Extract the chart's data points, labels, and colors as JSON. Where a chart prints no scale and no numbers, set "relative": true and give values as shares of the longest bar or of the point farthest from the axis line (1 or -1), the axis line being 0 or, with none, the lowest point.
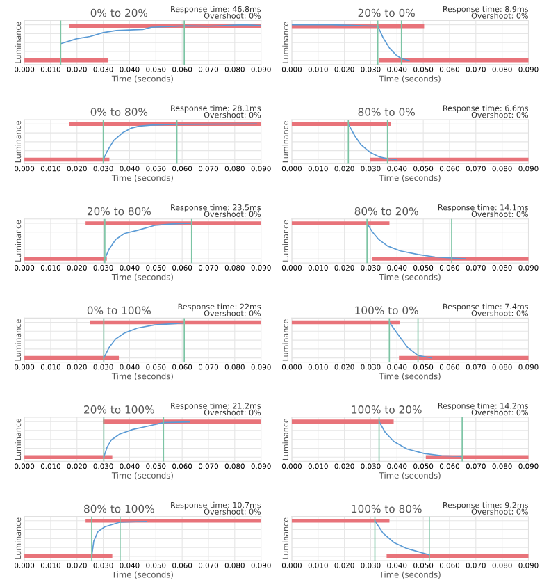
{
  "chart_data": [
    {
      "type": "line",
      "title": "0% to 20%",
      "xlabel": "Time (seconds)",
      "ylabel": "Luminance",
      "annotations": [
        "Response time: 46.8ms",
        "Overshoot: 0%"
      ],
      "relative": true,
      "grid": true,
      "tick_labels": "x",
      "xlim": [
        0,
        0.09
      ],
      "xticks": [
        {
          "value": 0,
          "label": "0.000"
        },
        {
          "value": 0.01,
          "label": "0.010"
        },
        {
          "value": 0.02,
          "label": "0.020"
        },
        {
          "value": 0.03,
          "label": "0.030"
        },
        {
          "value": 0.04,
          "label": "0.040"
        },
        {
          "value": 0.05,
          "label": "0.050"
        },
        {
          "value": 0.06,
          "label": "0.060"
        },
        {
          "value": 0.07,
          "label": "0.070"
        },
        {
          "value": 0.08,
          "label": "0.080"
        },
        {
          "value": 0.09,
          "label": "0.090"
        }
      ],
      "series": [
        {
          "color": "#e8737a",
          "x": [
            0,
            0.031
          ],
          "values": [
            0,
            0
          ]
        },
        {
          "color": "#e8737a",
          "x": [
            0.0178,
            0.09
          ],
          "values": [
            0.97,
            0.97
          ]
        },
        {
          "color": "#5b9bd5",
          "x": [
            0.0138,
            0.02,
            0.025,
            0.03,
            0.035,
            0.045,
            0.0483,
            0.0608,
            0.07,
            0.0833,
            0.09
          ],
          "values": [
            0.47,
            0.61,
            0.67,
            0.78,
            0.84,
            0.87,
            0.93,
            0.97,
            0.96,
            1.0,
            0.98
          ]
        }
      ],
      "ref_lines": [
        {
          "axis": "x",
          "value": 0.0138,
          "color": "#7cc4a4"
        },
        {
          "axis": "x",
          "value": 0.0608,
          "color": "#7cc4a4"
        }
      ]
    },
    {
      "type": "line",
      "title": "20% to 0%",
      "xlabel": "Time (seconds)",
      "ylabel": "Luminance",
      "annotations": [
        "Response time: 8.9ms",
        "Overshoot: 0%"
      ],
      "relative": true,
      "grid": true,
      "tick_labels": "x",
      "xlim": [
        0,
        0.09
      ],
      "xticks": [
        {
          "value": 0,
          "label": "0.000"
        },
        {
          "value": 0.01,
          "label": "0.010"
        },
        {
          "value": 0.02,
          "label": "0.020"
        },
        {
          "value": 0.03,
          "label": "0.030"
        },
        {
          "value": 0.04,
          "label": "0.040"
        },
        {
          "value": 0.05,
          "label": "0.050"
        },
        {
          "value": 0.06,
          "label": "0.060"
        },
        {
          "value": 0.07,
          "label": "0.070"
        },
        {
          "value": 0.08,
          "label": "0.080"
        },
        {
          "value": 0.09,
          "label": "0.090"
        }
      ],
      "series": [
        {
          "color": "#e8737a",
          "x": [
            0,
            0.0496
          ],
          "values": [
            0.96,
            0.96
          ]
        },
        {
          "color": "#e8737a",
          "x": [
            0.034,
            0.09
          ],
          "values": [
            0,
            0
          ]
        },
        {
          "color": "#5b9bd5",
          "x": [
            0,
            0.015,
            0.0327,
            0.0347,
            0.0372,
            0.0397,
            0.0417,
            0.0446
          ],
          "values": [
            1.0,
            1.0,
            0.96,
            0.64,
            0.34,
            0.15,
            0.05,
            0
          ]
        }
      ],
      "ref_lines": [
        {
          "axis": "x",
          "value": 0.0327,
          "color": "#7cc4a4"
        },
        {
          "axis": "x",
          "value": 0.0417,
          "color": "#7cc4a4"
        }
      ]
    },
    {
      "type": "line",
      "title": "0% to 80%",
      "xlabel": "Time (seconds)",
      "ylabel": "Luminance",
      "annotations": [
        "Response time: 28.1ms",
        "Overshoot: 0%"
      ],
      "relative": true,
      "grid": true,
      "tick_labels": "x",
      "xlim": [
        0,
        0.09
      ],
      "xticks": [
        {
          "value": 0,
          "label": "0.000"
        },
        {
          "value": 0.01,
          "label": "0.010"
        },
        {
          "value": 0.02,
          "label": "0.020"
        },
        {
          "value": 0.03,
          "label": "0.030"
        },
        {
          "value": 0.04,
          "label": "0.040"
        },
        {
          "value": 0.05,
          "label": "0.050"
        },
        {
          "value": 0.06,
          "label": "0.060"
        },
        {
          "value": 0.07,
          "label": "0.070"
        },
        {
          "value": 0.08,
          "label": "0.080"
        },
        {
          "value": 0.09,
          "label": "0.090"
        }
      ],
      "series": [
        {
          "color": "#e8737a",
          "x": [
            0,
            0.0316
          ],
          "values": [
            0,
            0
          ]
        },
        {
          "color": "#e8737a",
          "x": [
            0.0178,
            0.09
          ],
          "values": [
            1,
            1
          ]
        },
        {
          "color": "#5b9bd5",
          "x": [
            0.03,
            0.0316,
            0.034,
            0.0373,
            0.0405,
            0.0438,
            0.0486,
            0.058,
            0.0883
          ],
          "values": [
            0,
            0.25,
            0.54,
            0.75,
            0.88,
            0.94,
            0.97,
            0.99,
            1.0
          ]
        }
      ],
      "ref_lines": [
        {
          "axis": "x",
          "value": 0.03,
          "color": "#7cc4a4"
        },
        {
          "axis": "x",
          "value": 0.058,
          "color": "#7cc4a4"
        }
      ]
    },
    {
      "type": "line",
      "title": "80% to 0%",
      "xlabel": "Time (seconds)",
      "ylabel": "Luminance",
      "annotations": [
        "Response time: 6.6ms",
        "Overshoot: 0%"
      ],
      "relative": true,
      "grid": true,
      "tick_labels": "x",
      "xlim": [
        0,
        0.09
      ],
      "xticks": [
        {
          "value": 0,
          "label": "0.000"
        },
        {
          "value": 0.01,
          "label": "0.010"
        },
        {
          "value": 0.02,
          "label": "0.020"
        },
        {
          "value": 0.03,
          "label": "0.030"
        },
        {
          "value": 0.04,
          "label": "0.040"
        },
        {
          "value": 0.05,
          "label": "0.050"
        },
        {
          "value": 0.06,
          "label": "0.060"
        },
        {
          "value": 0.07,
          "label": "0.070"
        },
        {
          "value": 0.08,
          "label": "0.080"
        },
        {
          "value": 0.09,
          "label": "0.090"
        }
      ],
      "series": [
        {
          "color": "#e8737a",
          "x": [
            0,
            0.037
          ],
          "values": [
            1,
            1
          ]
        },
        {
          "color": "#e8737a",
          "x": [
            0.0306,
            0.09
          ],
          "values": [
            0,
            0
          ]
        },
        {
          "color": "#5b9bd5",
          "x": [
            0.0215,
            0.024,
            0.0264,
            0.0298,
            0.0331,
            0.0364,
            0.0397
          ],
          "values": [
            1,
            0.66,
            0.41,
            0.2,
            0.08,
            0.02,
            0
          ]
        }
      ],
      "ref_lines": [
        {
          "axis": "x",
          "value": 0.0215,
          "color": "#7cc4a4"
        },
        {
          "axis": "x",
          "value": 0.0364,
          "color": "#7cc4a4"
        }
      ]
    },
    {
      "type": "line",
      "title": "20% to 80%",
      "xlabel": "Time (seconds)",
      "ylabel": "Luminance",
      "annotations": [
        "Response time: 23.5ms",
        "Overshoot: 0%"
      ],
      "relative": true,
      "grid": true,
      "tick_labels": "x",
      "xlim": [
        0,
        0.09
      ],
      "xticks": [
        {
          "value": 0,
          "label": "0.000"
        },
        {
          "value": 0.01,
          "label": "0.010"
        },
        {
          "value": 0.02,
          "label": "0.020"
        },
        {
          "value": 0.03,
          "label": "0.030"
        },
        {
          "value": 0.04,
          "label": "0.040"
        },
        {
          "value": 0.05,
          "label": "0.050"
        },
        {
          "value": 0.06,
          "label": "0.060"
        },
        {
          "value": 0.07,
          "label": "0.070"
        },
        {
          "value": 0.08,
          "label": "0.080"
        },
        {
          "value": 0.09,
          "label": "0.090"
        }
      ],
      "series": [
        {
          "color": "#e8737a",
          "x": [
            0,
            0.0306
          ],
          "values": [
            0,
            0
          ]
        },
        {
          "color": "#e8737a",
          "x": [
            0.024,
            0.09
          ],
          "values": [
            1,
            1
          ]
        },
        {
          "color": "#5b9bd5",
          "x": [
            0.0306,
            0.0322,
            0.0347,
            0.038,
            0.043,
            0.0496,
            0.0562,
            0.0636
          ],
          "values": [
            0,
            0.27,
            0.54,
            0.71,
            0.8,
            0.94,
            0.98,
            1.0
          ]
        }
      ],
      "ref_lines": [
        {
          "axis": "x",
          "value": 0.0306,
          "color": "#7cc4a4"
        },
        {
          "axis": "x",
          "value": 0.0636,
          "color": "#7cc4a4"
        }
      ]
    },
    {
      "type": "line",
      "title": "80% to 20%",
      "xlabel": "Time (seconds)",
      "ylabel": "Luminance",
      "annotations": [
        "Response time: 14.1ms",
        "Overshoot: 0%"
      ],
      "relative": true,
      "grid": true,
      "tick_labels": "x",
      "xlim": [
        0,
        0.09
      ],
      "xticks": [
        {
          "value": 0,
          "label": "0.000"
        },
        {
          "value": 0.01,
          "label": "0.010"
        },
        {
          "value": 0.02,
          "label": "0.020"
        },
        {
          "value": 0.03,
          "label": "0.030"
        },
        {
          "value": 0.04,
          "label": "0.040"
        },
        {
          "value": 0.05,
          "label": "0.050"
        },
        {
          "value": 0.06,
          "label": "0.060"
        },
        {
          "value": 0.07,
          "label": "0.070"
        },
        {
          "value": 0.08,
          "label": "0.080"
        },
        {
          "value": 0.09,
          "label": "0.090"
        }
      ],
      "series": [
        {
          "color": "#e8737a",
          "x": [
            0,
            0.0364
          ],
          "values": [
            1,
            1
          ]
        },
        {
          "color": "#e8737a",
          "x": [
            0.0314,
            0.09
          ],
          "values": [
            0,
            0
          ]
        },
        {
          "color": "#5b9bd5",
          "x": [
            0.0286,
            0.0306,
            0.0331,
            0.0364,
            0.0413,
            0.048,
            0.0545,
            0.0608,
            0.0661
          ],
          "values": [
            1,
            0.76,
            0.54,
            0.36,
            0.22,
            0.12,
            0.05,
            0.02,
            0
          ]
        }
      ],
      "ref_lines": [
        {
          "axis": "x",
          "value": 0.0286,
          "color": "#7cc4a4"
        },
        {
          "axis": "x",
          "value": 0.0608,
          "color": "#7cc4a4"
        }
      ]
    },
    {
      "type": "line",
      "title": "0% to 100%",
      "xlabel": "Time (seconds)",
      "ylabel": "Luminance",
      "annotations": [
        "Response time: 22ms",
        "Overshoot: 0%"
      ],
      "relative": true,
      "grid": true,
      "tick_labels": "x",
      "xlim": [
        0,
        0.09
      ],
      "xticks": [
        {
          "value": 0,
          "label": "0.000"
        },
        {
          "value": 0.01,
          "label": "0.010"
        },
        {
          "value": 0.02,
          "label": "0.020"
        },
        {
          "value": 0.03,
          "label": "0.030"
        },
        {
          "value": 0.04,
          "label": "0.040"
        },
        {
          "value": 0.05,
          "label": "0.050"
        },
        {
          "value": 0.06,
          "label": "0.060"
        },
        {
          "value": 0.07,
          "label": "0.070"
        },
        {
          "value": 0.08,
          "label": "0.080"
        },
        {
          "value": 0.09,
          "label": "0.090"
        }
      ],
      "series": [
        {
          "color": "#e8737a",
          "x": [
            0,
            0.0352
          ],
          "values": [
            0,
            0
          ]
        },
        {
          "color": "#e8737a",
          "x": [
            0.0256,
            0.09
          ],
          "values": [
            1,
            1
          ]
        },
        {
          "color": "#5b9bd5",
          "x": [
            0.0302,
            0.0322,
            0.0347,
            0.038,
            0.043,
            0.0496,
            0.0608
          ],
          "values": [
            0,
            0.29,
            0.53,
            0.7,
            0.84,
            0.93,
            0.98
          ]
        }
      ],
      "ref_lines": [
        {
          "axis": "x",
          "value": 0.0302,
          "color": "#7cc4a4"
        },
        {
          "axis": "x",
          "value": 0.0608,
          "color": "#7cc4a4"
        }
      ]
    },
    {
      "type": "line",
      "title": "100% to 0%",
      "xlabel": "Time (seconds)",
      "ylabel": "Luminance",
      "annotations": [
        "Response time: 7.4ms",
        "Overshoot: 0%"
      ],
      "relative": true,
      "grid": true,
      "tick_labels": "x",
      "xlim": [
        0,
        0.09
      ],
      "xticks": [
        {
          "value": 0,
          "label": "0.000"
        },
        {
          "value": 0.01,
          "label": "0.010"
        },
        {
          "value": 0.02,
          "label": "0.020"
        },
        {
          "value": 0.03,
          "label": "0.030"
        },
        {
          "value": 0.04,
          "label": "0.040"
        },
        {
          "value": 0.05,
          "label": "0.050"
        },
        {
          "value": 0.06,
          "label": "0.060"
        },
        {
          "value": 0.07,
          "label": "0.070"
        },
        {
          "value": 0.08,
          "label": "0.080"
        },
        {
          "value": 0.09,
          "label": "0.090"
        }
      ],
      "series": [
        {
          "color": "#e8737a",
          "x": [
            0,
            0.0405
          ],
          "values": [
            1,
            1
          ]
        },
        {
          "color": "#e8737a",
          "x": [
            0.0415,
            0.09
          ],
          "values": [
            0,
            0
          ]
        },
        {
          "color": "#5b9bd5",
          "x": [
            0.0371,
            0.0405,
            0.044,
            0.048,
            0.053
          ],
          "values": [
            1,
            0.65,
            0.3,
            0.07,
            0
          ]
        }
      ],
      "ref_lines": [
        {
          "axis": "x",
          "value": 0.0371,
          "color": "#7cc4a4"
        },
        {
          "axis": "x",
          "value": 0.048,
          "color": "#7cc4a4"
        }
      ]
    },
    {
      "type": "line",
      "title": "20% to 100%",
      "xlabel": "Time (seconds)",
      "ylabel": "Luminance",
      "annotations": [
        "Response time: 21.2ms",
        "Overshoot: 0%"
      ],
      "relative": true,
      "grid": true,
      "tick_labels": "x",
      "xlim": [
        0,
        0.09
      ],
      "xticks": [
        {
          "value": 0,
          "label": "0.000"
        },
        {
          "value": 0.01,
          "label": "0.010"
        },
        {
          "value": 0.02,
          "label": "0.020"
        },
        {
          "value": 0.03,
          "label": "0.030"
        },
        {
          "value": 0.04,
          "label": "0.040"
        },
        {
          "value": 0.05,
          "label": "0.050"
        },
        {
          "value": 0.06,
          "label": "0.060"
        },
        {
          "value": 0.07,
          "label": "0.070"
        },
        {
          "value": 0.08,
          "label": "0.080"
        },
        {
          "value": 0.09,
          "label": "0.090"
        }
      ],
      "series": [
        {
          "color": "#e8737a",
          "x": [
            0,
            0.0327
          ],
          "values": [
            0,
            0
          ]
        },
        {
          "color": "#e8737a",
          "x": [
            0.0306,
            0.09
          ],
          "values": [
            1,
            1
          ]
        },
        {
          "color": "#5b9bd5",
          "x": [
            0.0302,
            0.0314,
            0.033,
            0.0363,
            0.0413,
            0.0463,
            0.0529,
            0.0628
          ],
          "values": [
            0,
            0.27,
            0.48,
            0.65,
            0.78,
            0.86,
            0.97,
            0.99
          ]
        }
      ],
      "ref_lines": [
        {
          "axis": "x",
          "value": 0.0302,
          "color": "#7cc4a4"
        },
        {
          "axis": "x",
          "value": 0.0529,
          "color": "#7cc4a4"
        }
      ]
    },
    {
      "type": "line",
      "title": "100% to 20%",
      "xlabel": "Time (seconds)",
      "ylabel": "Luminance",
      "annotations": [
        "Response time: 14.2ms",
        "Overshoot: 0%"
      ],
      "relative": true,
      "grid": true,
      "tick_labels": "x",
      "xlim": [
        0,
        0.09
      ],
      "xticks": [
        {
          "value": 0,
          "label": "0.000"
        },
        {
          "value": 0.01,
          "label": "0.010"
        },
        {
          "value": 0.02,
          "label": "0.020"
        },
        {
          "value": 0.03,
          "label": "0.030"
        },
        {
          "value": 0.04,
          "label": "0.040"
        },
        {
          "value": 0.05,
          "label": "0.050"
        },
        {
          "value": 0.06,
          "label": "0.060"
        },
        {
          "value": 0.07,
          "label": "0.070"
        },
        {
          "value": 0.08,
          "label": "0.080"
        },
        {
          "value": 0.09,
          "label": "0.090"
        }
      ],
      "series": [
        {
          "color": "#e8737a",
          "x": [
            0,
            0.038
          ],
          "values": [
            1,
            1
          ]
        },
        {
          "color": "#e8737a",
          "x": [
            0.0517,
            0.09
          ],
          "values": [
            0,
            0
          ]
        },
        {
          "color": "#5b9bd5",
          "x": [
            0.0332,
            0.0355,
            0.0388,
            0.0438,
            0.0504,
            0.057,
            0.0648
          ],
          "values": [
            1,
            0.7,
            0.44,
            0.23,
            0.1,
            0.04,
            0.02
          ]
        }
      ],
      "ref_lines": [
        {
          "axis": "x",
          "value": 0.0332,
          "color": "#7cc4a4"
        },
        {
          "axis": "x",
          "value": 0.0648,
          "color": "#7cc4a4"
        }
      ]
    },
    {
      "type": "line",
      "title": "80% to 100%",
      "xlabel": "Time (seconds)",
      "ylabel": "Luminance",
      "annotations": [
        "Response time: 10.7ms",
        "Overshoot: 0%"
      ],
      "relative": true,
      "grid": true,
      "tick_labels": "x",
      "xlim": [
        0,
        0.09
      ],
      "xticks": [
        {
          "value": 0,
          "label": "0.000"
        },
        {
          "value": 0.01,
          "label": "0.010"
        },
        {
          "value": 0.02,
          "label": "0.020"
        },
        {
          "value": 0.03,
          "label": "0.030"
        },
        {
          "value": 0.04,
          "label": "0.040"
        },
        {
          "value": 0.05,
          "label": "0.050"
        },
        {
          "value": 0.06,
          "label": "0.060"
        },
        {
          "value": 0.07,
          "label": "0.070"
        },
        {
          "value": 0.08,
          "label": "0.080"
        },
        {
          "value": 0.09,
          "label": "0.090"
        }
      ],
      "series": [
        {
          "color": "#e8737a",
          "x": [
            0,
            0.0327
          ],
          "values": [
            0,
            0
          ]
        },
        {
          "color": "#e8737a",
          "x": [
            0.024,
            0.09
          ],
          "values": [
            1,
            1
          ]
        },
        {
          "color": "#5b9bd5",
          "x": [
            0.0256,
            0.0264,
            0.028,
            0.0306,
            0.0364,
            0.0463
          ],
          "values": [
            0,
            0.43,
            0.7,
            0.83,
            0.96,
            0.98
          ]
        }
      ],
      "ref_lines": [
        {
          "axis": "x",
          "value": 0.0256,
          "color": "#7cc4a4"
        },
        {
          "axis": "x",
          "value": 0.0364,
          "color": "#7cc4a4"
        }
      ]
    },
    {
      "type": "line",
      "title": "100% to 80%",
      "xlabel": "Time (seconds)",
      "ylabel": "Luminance",
      "annotations": [
        "Response time: 9.2ms",
        "Overshoot: 0%"
      ],
      "relative": true,
      "grid": true,
      "tick_labels": "x",
      "xlim": [
        0,
        0.09
      ],
      "xticks": [
        {
          "value": 0,
          "label": "0.000"
        },
        {
          "value": 0.01,
          "label": "0.010"
        },
        {
          "value": 0.02,
          "label": "0.020"
        },
        {
          "value": 0.03,
          "label": "0.030"
        },
        {
          "value": 0.04,
          "label": "0.040"
        },
        {
          "value": 0.05,
          "label": "0.050"
        },
        {
          "value": 0.06,
          "label": "0.060"
        },
        {
          "value": 0.07,
          "label": "0.070"
        },
        {
          "value": 0.08,
          "label": "0.080"
        },
        {
          "value": 0.09,
          "label": "0.090"
        }
      ],
      "series": [
        {
          "color": "#e8737a",
          "x": [
            0,
            0.0364
          ],
          "values": [
            1,
            1
          ]
        },
        {
          "color": "#e8737a",
          "x": [
            0.0368,
            0.09
          ],
          "values": [
            0,
            0
          ]
        },
        {
          "color": "#5b9bd5",
          "x": [
            0.0316,
            0.0347,
            0.0388,
            0.0438,
            0.0523
          ],
          "values": [
            1,
            0.65,
            0.39,
            0.22,
            0.04
          ]
        }
      ],
      "ref_lines": [
        {
          "axis": "x",
          "value": 0.0316,
          "color": "#7cc4a4"
        },
        {
          "axis": "x",
          "value": 0.0523,
          "color": "#7cc4a4"
        }
      ]
    }
  ]
}
